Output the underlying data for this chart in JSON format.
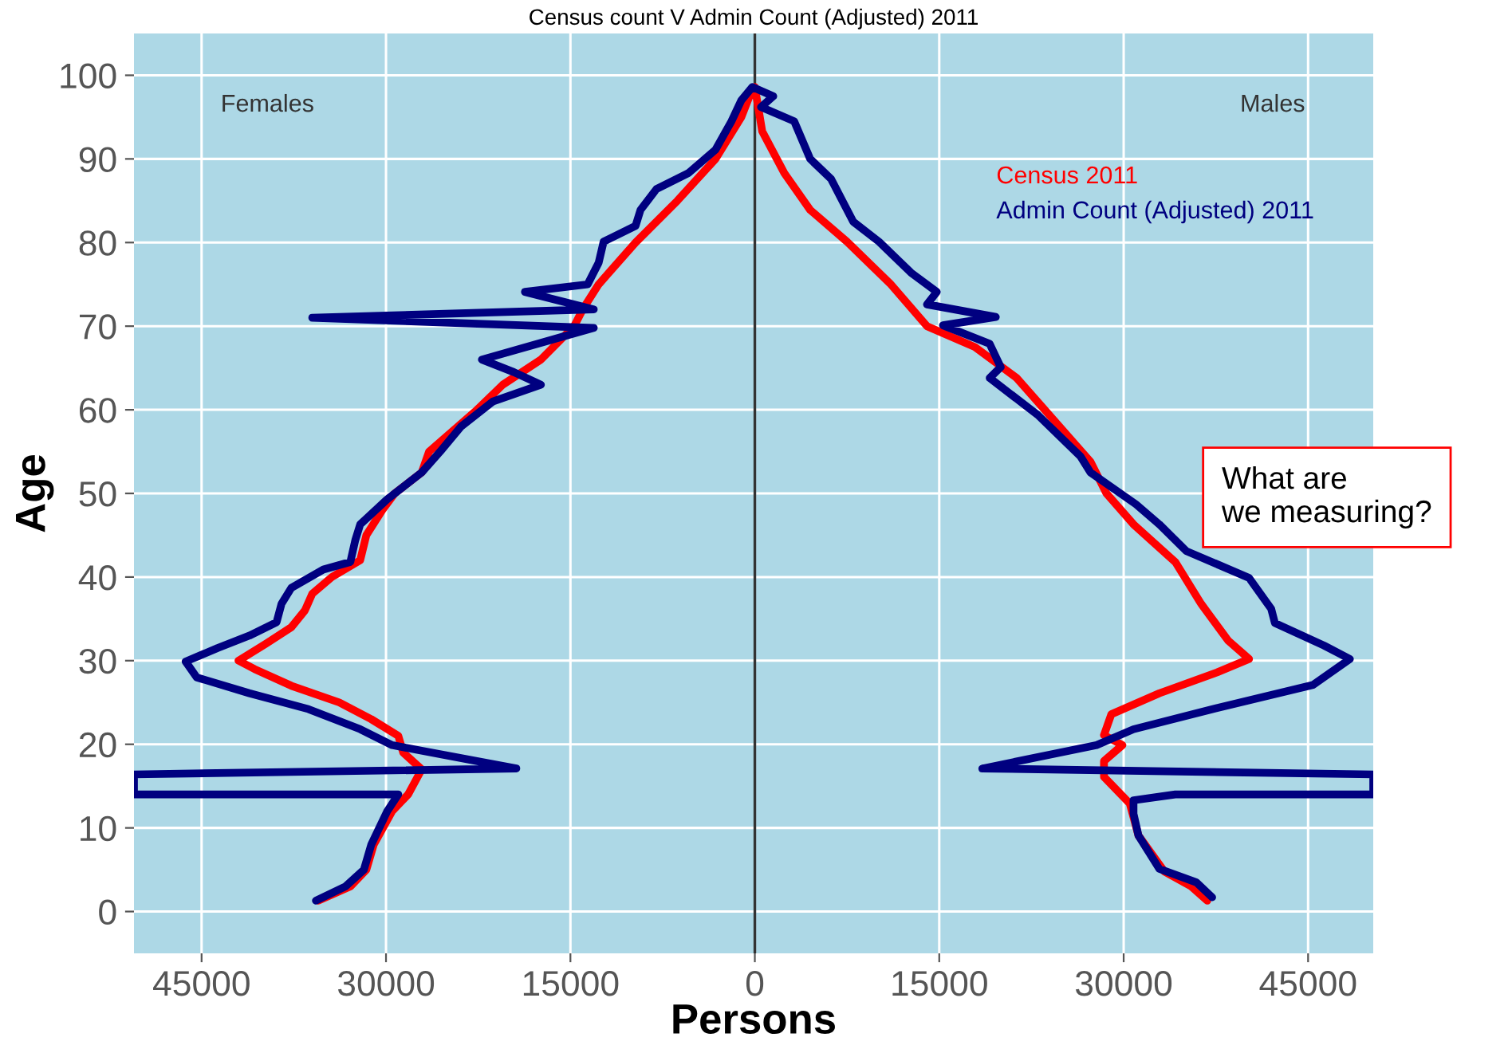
{
  "chart_data": {
    "type": "line",
    "title": "Census count V Admin Count (Adjusted) 2011",
    "xlabel": "Persons",
    "ylabel": "Age",
    "annotations": [
      "Females",
      "Males",
      "What are\nwe measuring?"
    ],
    "series": [
      {
        "name": "Census 2011",
        "color": "#ff0000",
        "x": [
          -35500,
          -32900,
          -31600,
          -31000,
          -29500,
          -28200,
          -27100,
          -28600,
          -29000,
          -31200,
          -33800,
          -37700,
          -40700,
          -42000,
          -39800,
          -37700,
          -36600,
          -36000,
          -34400,
          -32100,
          -31600,
          -30300,
          -29300,
          -27100,
          -26500,
          -22600,
          -20500,
          -17400,
          -14700,
          -14000,
          -12700,
          -9700,
          -6300,
          -3200,
          -1100,
          -300,
          0,
          600,
          2400,
          4500,
          7500,
          11000,
          14000,
          17900,
          21300,
          24300,
          27300,
          28600,
          30800,
          34200,
          36300,
          38500,
          40200,
          37600,
          32900,
          29000,
          28400,
          29900,
          28400,
          28400,
          30500,
          31200,
          33300,
          35500,
          36800
        ],
        "values": [
          1.3,
          3,
          5,
          8,
          12,
          14,
          17,
          19,
          21,
          23,
          25,
          27,
          29,
          30,
          32,
          34,
          36,
          38,
          40,
          42,
          45,
          48,
          50,
          52.5,
          55,
          60,
          63,
          66,
          70,
          72,
          75,
          80,
          85,
          90,
          95,
          98,
          98.6,
          93.3,
          88.3,
          83.9,
          80.1,
          75.1,
          70,
          67.5,
          63.8,
          58.8,
          53.8,
          50,
          46.3,
          41.8,
          36.8,
          32.4,
          30.2,
          28.6,
          26.1,
          23.6,
          21.1,
          19.9,
          18,
          16.1,
          12.9,
          9.1,
          4.8,
          3,
          1.3
        ]
      },
      {
        "name": "Admin Count (Adjusted) 2011",
        "color": "#000080",
        "x": [
          -35700,
          -33300,
          -31800,
          -31200,
          -29900,
          -29000,
          -50500,
          -50500,
          -19400,
          -29500,
          -32100,
          -36300,
          -41100,
          -45400,
          -46300,
          -43700,
          -41100,
          -38900,
          -38500,
          -37700,
          -35100,
          -32900,
          -32500,
          -32100,
          -29900,
          -27100,
          -25600,
          -23900,
          -21300,
          -17400,
          -19600,
          -22200,
          -13100,
          -36000,
          -13100,
          -18700,
          -13600,
          -12700,
          -12300,
          -9700,
          -9300,
          -8000,
          -5400,
          -3200,
          -1900,
          -1100,
          -200,
          1500,
          500,
          3200,
          4500,
          6200,
          8000,
          10100,
          12700,
          14800,
          14000,
          19600,
          15300,
          19100,
          20000,
          19100,
          23000,
          26500,
          27300,
          31000,
          32900,
          35100,
          40200,
          42000,
          42300,
          46300,
          48400,
          45400,
          37200,
          30800,
          27800,
          18500,
          50300,
          50300,
          34200,
          30800,
          30800,
          31200,
          32900,
          35900,
          37200
        ],
        "values": [
          1.3,
          3,
          5,
          8,
          12,
          14,
          14,
          16.4,
          17.1,
          19.9,
          21.8,
          24.2,
          26.1,
          28,
          29.9,
          31.5,
          33,
          34.6,
          36.8,
          38.7,
          40.9,
          41.8,
          44.4,
          46.3,
          49.3,
          52.5,
          55,
          58,
          61,
          63,
          64.5,
          66,
          69.8,
          71,
          72,
          74.1,
          75,
          77.6,
          80.1,
          82,
          83.9,
          86.4,
          88.3,
          91.1,
          94.5,
          97,
          98.6,
          97.5,
          96.2,
          94.5,
          90,
          87.6,
          82.5,
          80.1,
          76.4,
          74.1,
          72.6,
          71.1,
          70.1,
          67.9,
          65.1,
          63.8,
          59.4,
          54.4,
          52.5,
          48.7,
          46.3,
          43.1,
          39.9,
          36.2,
          34.5,
          31.8,
          30.2,
          27.1,
          24.2,
          21.8,
          19.9,
          17.1,
          16.4,
          14,
          14,
          13.3,
          11.7,
          9.1,
          5.1,
          3.5,
          1.7
        ]
      }
    ],
    "xlim": [
      -50500,
      50300
    ],
    "ylim": [
      -5,
      105
    ],
    "xticks": [
      {
        "value": -45000,
        "label": "45000"
      },
      {
        "value": -30000,
        "label": "30000"
      },
      {
        "value": -15000,
        "label": "15000"
      },
      0,
      15000,
      30000,
      45000
    ],
    "yticks": [
      0,
      10,
      20,
      30,
      40,
      50,
      60,
      70,
      80,
      90,
      100
    ],
    "ref_lines": [
      {
        "axis": "x",
        "value": 0,
        "color": "#333333"
      }
    ],
    "grid": true,
    "legend": "top right",
    "marker": "none",
    "line_style": "solid"
  }
}
